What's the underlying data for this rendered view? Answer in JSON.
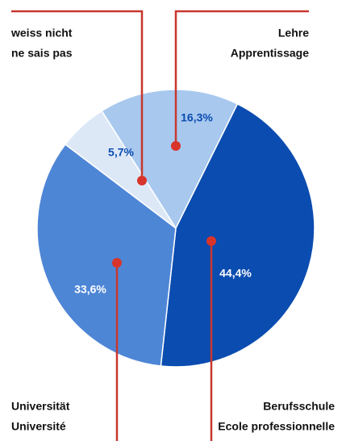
{
  "chart_data": {
    "type": "pie",
    "categories": [
      [
        "Lehre",
        "Apprentissage"
      ],
      [
        "Berufsschule",
        "Ecole professionnelle"
      ],
      [
        "Universität",
        "Université"
      ],
      [
        "weiss nicht",
        "ne sais pas"
      ]
    ],
    "values": [
      16.3,
      44.4,
      33.6,
      5.7
    ],
    "value_labels": [
      "16,3%",
      "44,4%",
      "33,6%",
      "5,7%"
    ],
    "colors": [
      "#a8c8ee",
      "#0b4cb0",
      "#4e86d6",
      "#dde8f7"
    ]
  }
}
